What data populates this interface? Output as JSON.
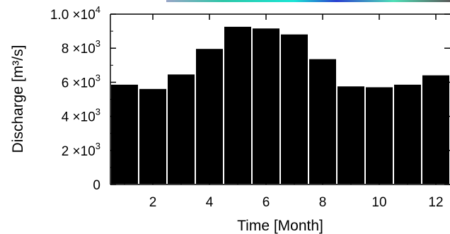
{
  "chart_data": {
    "type": "bar",
    "categories": [
      1,
      2,
      3,
      4,
      5,
      6,
      7,
      8,
      9,
      10,
      11,
      12
    ],
    "values": [
      5900,
      5650,
      6500,
      8000,
      9300,
      9200,
      8850,
      7400,
      5800,
      5750,
      5900,
      6450
    ],
    "xlabel": "Time [Month]",
    "ylabel": "Discharge [m³/s]",
    "xlim": [
      0.5,
      12.5
    ],
    "ylim": [
      0,
      10000
    ],
    "xticks": [
      2,
      4,
      6,
      8,
      10,
      12
    ],
    "xtick_labels": [
      "2",
      "4",
      "6",
      "8",
      "10",
      "12"
    ],
    "yticks": [
      0,
      2000,
      4000,
      6000,
      8000,
      10000
    ],
    "ytick_labels": [
      {
        "mantissa": "0",
        "exponent": ""
      },
      {
        "mantissa": "2 ×10",
        "exponent": "3"
      },
      {
        "mantissa": "4 ×10",
        "exponent": "3"
      },
      {
        "mantissa": "6 ×10",
        "exponent": "3"
      },
      {
        "mantissa": "8 ×10",
        "exponent": "3"
      },
      {
        "mantissa": "1.0 ×10",
        "exponent": "4"
      }
    ],
    "bar_color": "#000000",
    "bar_edge_color": "#ffffff",
    "grid": false,
    "legend": "none"
  }
}
